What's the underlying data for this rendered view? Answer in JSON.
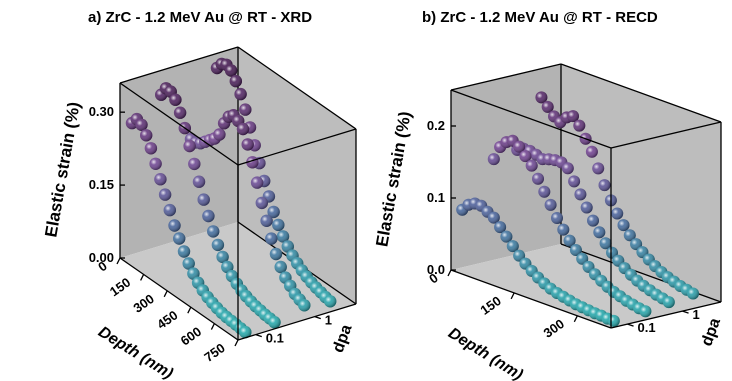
{
  "chart_data": [
    {
      "type": "scatter",
      "title": "a) ZrC - 1.2 MeV Au @ RT - XRD",
      "xlabel": "Depth (nm)",
      "ylabel": "Elastic strain (%)",
      "zlabel": "dpa",
      "x_ticks": [
        "0",
        "150",
        "300",
        "450",
        "600",
        "750"
      ],
      "y_ticks": [
        "0.00",
        "0.15",
        "0.30"
      ],
      "z_ticks": [
        "0.1",
        "1"
      ],
      "xlim": [
        0,
        750
      ],
      "ylim": [
        0,
        0.36
      ],
      "series": [
        {
          "dpa": 0.08,
          "x": [
            0,
            30,
            60,
            90,
            120,
            150,
            180,
            210,
            240,
            270,
            300,
            330,
            360,
            390,
            420,
            450,
            480,
            510,
            540,
            570,
            600,
            630,
            660,
            690,
            720
          ],
          "values": [
            0.27,
            0.285,
            0.28,
            0.265,
            0.245,
            0.22,
            0.195,
            0.17,
            0.145,
            0.12,
            0.1,
            0.08,
            0.062,
            0.048,
            0.036,
            0.027,
            0.02,
            0.015,
            0.011,
            0.008,
            0.006,
            0.005,
            0.004,
            0.003,
            0.002
          ]
        },
        {
          "dpa": 0.25,
          "x": [
            0,
            30,
            60,
            90,
            120,
            150,
            180,
            210,
            240,
            270,
            300,
            330,
            360,
            390,
            420,
            450,
            480,
            510,
            540,
            570,
            600,
            630,
            660,
            690,
            720
          ],
          "values": [
            0.31,
            0.33,
            0.33,
            0.32,
            0.3,
            0.275,
            0.245,
            0.215,
            0.185,
            0.155,
            0.128,
            0.103,
            0.082,
            0.064,
            0.05,
            0.038,
            0.029,
            0.022,
            0.017,
            0.013,
            0.01,
            0.008,
            0.006,
            0.005,
            0.004
          ]
        },
        {
          "dpa": 0.8,
          "x": [
            0,
            30,
            60,
            90,
            120,
            150,
            180,
            210,
            240,
            270,
            300,
            330,
            360,
            390,
            420,
            450,
            480,
            510,
            540,
            570,
            600,
            630,
            660,
            690,
            720
          ],
          "values": [
            0.2,
            0.2,
            0.205,
            0.215,
            0.225,
            0.235,
            0.25,
            0.28,
            0.3,
            0.31,
            0.305,
            0.295,
            0.27,
            0.24,
            0.205,
            0.17,
            0.14,
            0.11,
            0.085,
            0.065,
            0.05,
            0.04,
            0.03,
            0.025,
            0.02
          ]
        },
        {
          "dpa": 2.2,
          "x": [
            0,
            30,
            60,
            90,
            120,
            150,
            180,
            210,
            240,
            270,
            300,
            330,
            360,
            390,
            420,
            450,
            480,
            510,
            540,
            570,
            600,
            630,
            660,
            690,
            720
          ],
          "values": [
            0.33,
            0.345,
            0.35,
            0.345,
            0.33,
            0.31,
            0.285,
            0.255,
            0.225,
            0.195,
            0.165,
            0.14,
            0.115,
            0.095,
            0.078,
            0.064,
            0.052,
            0.043,
            0.035,
            0.029,
            0.024,
            0.02,
            0.017,
            0.014,
            0.012
          ]
        }
      ],
      "colormap": [
        "#1aa6a8",
        "#3d5f97",
        "#6b3a8c",
        "#3d0f4a"
      ]
    },
    {
      "type": "scatter",
      "title": "b) ZrC - 1.2 MeV Au @ RT - RECD",
      "xlabel": "Depth (nm)",
      "ylabel": "Elastic strain (%)",
      "zlabel": "dpa",
      "x_ticks": [
        "0",
        "150",
        "300"
      ],
      "y_ticks": [
        "0.0",
        "0.1",
        "0.2"
      ],
      "z_ticks": [
        "0.1",
        "1"
      ],
      "xlim": [
        0,
        380
      ],
      "ylim": [
        0,
        0.25
      ],
      "series": [
        {
          "dpa": 0.08,
          "x": [
            0,
            15,
            30,
            45,
            60,
            75,
            90,
            105,
            120,
            135,
            150,
            165,
            180,
            195,
            210,
            225,
            240,
            255,
            270,
            285,
            300,
            315,
            330,
            345,
            360
          ],
          "values": [
            0.08,
            0.09,
            0.095,
            0.095,
            0.09,
            0.085,
            0.075,
            0.065,
            0.055,
            0.045,
            0.037,
            0.03,
            0.024,
            0.019,
            0.015,
            0.012,
            0.01,
            0.008,
            0.006,
            0.005,
            0.004,
            0.003,
            0.003,
            0.002,
            0.002
          ]
        },
        {
          "dpa": 0.3,
          "x": [
            0,
            15,
            30,
            45,
            60,
            75,
            90,
            105,
            120,
            135,
            150,
            165,
            180,
            195,
            210,
            225,
            240,
            255,
            270,
            285,
            300,
            315,
            330,
            345,
            360
          ],
          "values": [
            0.14,
            0.16,
            0.17,
            0.175,
            0.17,
            0.16,
            0.15,
            0.135,
            0.12,
            0.105,
            0.09,
            0.077,
            0.065,
            0.055,
            0.046,
            0.038,
            0.031,
            0.025,
            0.02,
            0.016,
            0.013,
            0.01,
            0.008,
            0.006,
            0.005
          ]
        },
        {
          "dpa": 0.8,
          "x": [
            0,
            15,
            30,
            45,
            60,
            75,
            90,
            105,
            120,
            135,
            150,
            165,
            180,
            195,
            210,
            225,
            240,
            255,
            270,
            285,
            300,
            315,
            330,
            345,
            360
          ],
          "values": [
            0.145,
            0.15,
            0.15,
            0.148,
            0.145,
            0.148,
            0.15,
            0.15,
            0.145,
            0.13,
            0.115,
            0.1,
            0.085,
            0.072,
            0.06,
            0.05,
            0.042,
            0.035,
            0.029,
            0.024,
            0.02,
            0.017,
            0.014,
            0.012,
            0.01
          ]
        },
        {
          "dpa": 2.2,
          "x": [
            0,
            15,
            30,
            45,
            60,
            75,
            90,
            105,
            120,
            135,
            150,
            165,
            180,
            195,
            210,
            225,
            240,
            255,
            270,
            285,
            300,
            315,
            330,
            345,
            360
          ],
          "values": [
            0.21,
            0.2,
            0.19,
            0.185,
            0.195,
            0.2,
            0.19,
            0.175,
            0.16,
            0.14,
            0.12,
            0.102,
            0.087,
            0.074,
            0.063,
            0.054,
            0.046,
            0.039,
            0.033,
            0.028,
            0.024,
            0.021,
            0.018,
            0.016,
            0.014
          ]
        }
      ],
      "colormap": [
        "#1aa6a8",
        "#3d5f97",
        "#6b3a8c",
        "#3d0f4a"
      ]
    }
  ]
}
